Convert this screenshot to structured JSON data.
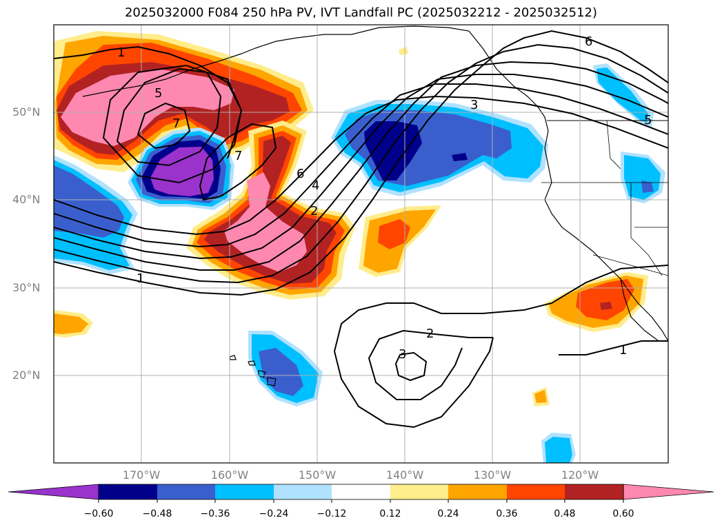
{
  "title": "2025032000 F084 250 hPa PV, IVT Landfall PC (2025032212 - 2025032512)",
  "map": {
    "projection": "PlateCarree",
    "extent": {
      "lon": [
        -180,
        -110
      ],
      "lat": [
        10,
        60
      ]
    },
    "lat_labels": [
      "20°N",
      "30°N",
      "40°N",
      "50°N"
    ],
    "lon_labels": [
      "170°W",
      "160°W",
      "150°W",
      "140°W",
      "130°W",
      "120°W"
    ],
    "contour_labels": [
      "1",
      "5",
      "7",
      "7",
      "6",
      "4",
      "2",
      "3",
      "6",
      "5",
      "1",
      "2",
      "3",
      "1"
    ]
  },
  "colorbar": {
    "tick_labels": [
      "−0.60",
      "−0.48",
      "−0.36",
      "−0.24",
      "−0.12",
      "0.12",
      "0.24",
      "0.36",
      "0.48",
      "0.60"
    ],
    "colors": [
      "#9933cc",
      "#00008b",
      "#3a5fcd",
      "#00bfff",
      "#b0e2ff",
      "#ffffff",
      "#ffec8b",
      "#ffa500",
      "#ff4500",
      "#b22222",
      "#ff88b0"
    ],
    "extend": "both"
  }
}
